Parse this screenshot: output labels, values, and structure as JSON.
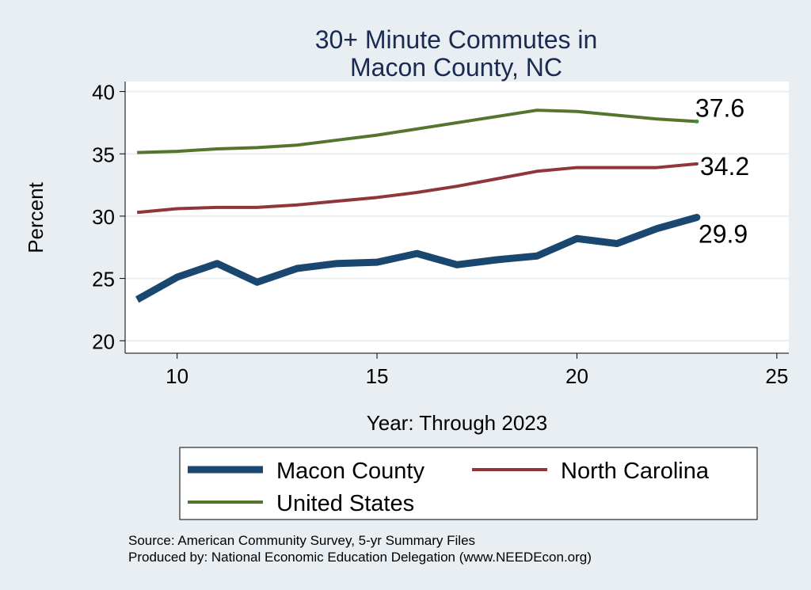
{
  "chart_data": {
    "type": "line",
    "title": "30+ Minute Commutes in",
    "subtitle": "Macon County, NC",
    "xlabel": "Year: Through 2023",
    "ylabel": "Percent",
    "xlim": [
      8.7,
      25.3
    ],
    "ylim": [
      19.0,
      40.8
    ],
    "x_ticks": [
      10,
      15,
      20,
      25
    ],
    "y_ticks": [
      20,
      25,
      30,
      35,
      40
    ],
    "grid": true,
    "legend_position": "bottom",
    "x": [
      9,
      10,
      11,
      12,
      13,
      14,
      15,
      16,
      17,
      18,
      19,
      20,
      21,
      22,
      23
    ],
    "series": [
      {
        "name": "Macon County",
        "color": "#1a476f",
        "values": [
          23.3,
          25.1,
          26.2,
          24.7,
          25.8,
          26.2,
          26.3,
          27.0,
          26.1,
          26.5,
          26.8,
          28.2,
          27.8,
          29.0,
          29.9
        ],
        "end_label": "29.9"
      },
      {
        "name": "North Carolina",
        "color": "#90353b",
        "values": [
          30.3,
          30.6,
          30.7,
          30.7,
          30.9,
          31.2,
          31.5,
          31.9,
          32.4,
          33.0,
          33.6,
          33.9,
          33.9,
          33.9,
          34.2
        ],
        "end_label": "34.2"
      },
      {
        "name": "United States",
        "color": "#55752f",
        "values": [
          35.1,
          35.2,
          35.4,
          35.5,
          35.7,
          36.1,
          36.5,
          37.0,
          37.5,
          38.0,
          38.5,
          38.4,
          38.1,
          37.8,
          37.6
        ],
        "end_label": "37.6"
      }
    ]
  },
  "notes": {
    "source": "Source: American Community Survey, 5-yr Summary Files",
    "produced": "Produced by: National Economic Education Delegation (www.NEEDEcon.org)"
  }
}
